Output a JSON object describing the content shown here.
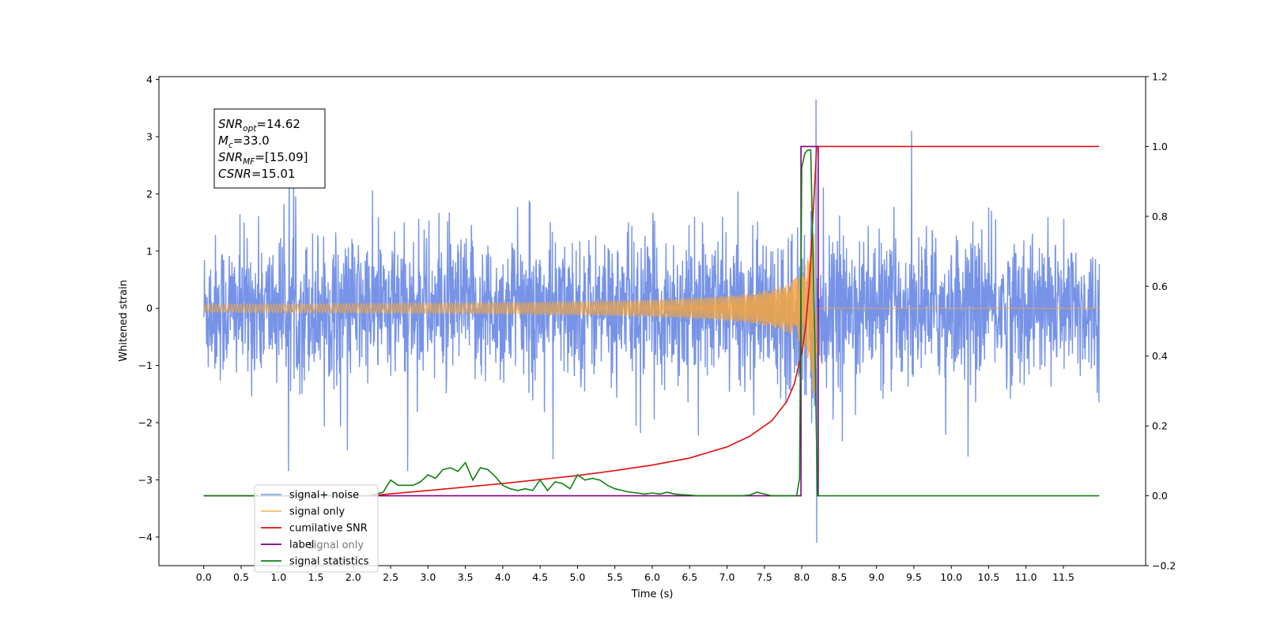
{
  "chart_data": {
    "type": "line",
    "xlabel": "Time (s)",
    "ylabel": "Whitened strain",
    "xlim": [
      -0.6,
      12.6
    ],
    "ylim": [
      -4.5,
      4.05
    ],
    "y2lim": [
      -0.2,
      1.2
    ],
    "x_ticks": [
      "0.0",
      "0.5",
      "1.0",
      "1.5",
      "2.0",
      "2.5",
      "3.0",
      "3.5",
      "4.0",
      "4.5",
      "5.0",
      "5.5",
      "6.0",
      "6.5",
      "7.0",
      "7.5",
      "8.0",
      "8.5",
      "9.0",
      "9.5",
      "10.0",
      "10.5",
      "11.0",
      "11.5"
    ],
    "y_ticks": [
      "4",
      "3",
      "2",
      "1",
      "0",
      "−1",
      "−2",
      "−3",
      "−4"
    ],
    "y2_ticks": [
      "1.2",
      "1.0",
      "0.8",
      "0.6",
      "0.4",
      "0.2",
      "0.0",
      "−0.2"
    ],
    "legend_placement": "lower-left",
    "annotation": [
      {
        "var": "SNR",
        "sub": "opt",
        "value": "=14.62"
      },
      {
        "var": "M",
        "sub": "c",
        "value": "=33.0"
      },
      {
        "var": "SNR",
        "sub": "MF",
        "value": "=[15.09]"
      },
      {
        "var": "CSNR",
        "sub": "",
        "value": "=15.01"
      }
    ],
    "series": [
      {
        "name": "signal+ noise",
        "color": "#6f8de6",
        "axis": "left",
        "description_values": {
          "t_start": 0.0,
          "t_end": 11.98,
          "noise_amplitude_typical": 1.2,
          "peak_max": 3.65,
          "peak_min": -4.1,
          "peak_time": 8.2
        }
      },
      {
        "name": "signal only",
        "color": "#f5a640",
        "axis": "left",
        "chirp": {
          "t_start": 0.0,
          "t_merger": 8.2,
          "peak_amplitude": 1.5,
          "t_end": 11.98
        }
      },
      {
        "name": "cumilative SNR",
        "color": "#e01010",
        "axis": "right",
        "x": [
          2.2,
          3.0,
          4.0,
          5.0,
          5.5,
          6.0,
          6.5,
          7.0,
          7.3,
          7.6,
          7.8,
          7.9,
          8.0,
          8.05,
          8.1,
          8.15,
          8.2,
          8.25,
          11.98
        ],
        "y": [
          0.0,
          0.015,
          0.035,
          0.058,
          0.072,
          0.088,
          0.108,
          0.14,
          0.17,
          0.215,
          0.27,
          0.32,
          0.41,
          0.48,
          0.6,
          0.8,
          1.0,
          1.0,
          1.0
        ]
      },
      {
        "name": "label",
        "color": "#800080",
        "axis": "right",
        "x": [
          0.0,
          7.99,
          7.99,
          8.22,
          8.22,
          8.23
        ],
        "y": [
          0.0,
          0.0,
          1.0,
          1.0,
          0.0,
          0.0
        ]
      },
      {
        "name": "signal statistics",
        "color": "#108010",
        "axis": "right",
        "x": [
          0.0,
          2.2,
          2.4,
          2.5,
          2.6,
          2.8,
          2.9,
          3.0,
          3.1,
          3.2,
          3.3,
          3.4,
          3.5,
          3.6,
          3.7,
          3.8,
          3.9,
          4.0,
          4.1,
          4.2,
          4.3,
          4.4,
          4.5,
          4.6,
          4.7,
          4.8,
          4.9,
          5.0,
          5.1,
          5.2,
          5.3,
          5.4,
          5.5,
          5.6,
          5.7,
          5.8,
          5.9,
          6.0,
          6.1,
          6.2,
          6.3,
          6.4,
          6.5,
          6.6,
          6.8,
          7.0,
          7.2,
          7.3,
          7.4,
          7.5,
          7.6,
          7.8,
          7.93,
          7.97,
          8.0,
          8.04,
          8.08,
          8.12,
          8.17,
          8.21,
          8.25,
          11.98
        ],
        "y": [
          0.0,
          0.0,
          0.01,
          0.045,
          0.03,
          0.03,
          0.04,
          0.06,
          0.05,
          0.075,
          0.08,
          0.07,
          0.095,
          0.045,
          0.08,
          0.075,
          0.055,
          0.03,
          0.02,
          0.015,
          0.02,
          0.015,
          0.045,
          0.015,
          0.04,
          0.035,
          0.02,
          0.06,
          0.045,
          0.05,
          0.045,
          0.03,
          0.02,
          0.015,
          0.01,
          0.008,
          0.005,
          0.008,
          0.005,
          0.01,
          0.005,
          0.003,
          0.002,
          0.0,
          0.0,
          0.0,
          0.0,
          0.002,
          0.01,
          0.005,
          0.0,
          0.0,
          0.0,
          0.05,
          0.94,
          0.98,
          0.99,
          0.99,
          0.5,
          0.0,
          0.0,
          0.0
        ]
      }
    ],
    "legend_extra_text": "signal only"
  }
}
